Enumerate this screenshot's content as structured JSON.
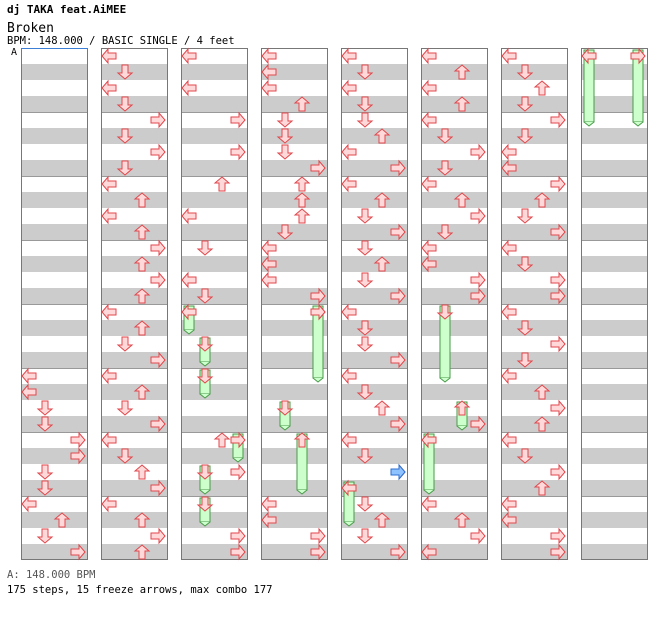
{
  "header": {
    "artist": "dj TAKA feat.AiMEE",
    "title": "Broken",
    "info": "BPM: 148.000 / BASIC SINGLE / 4 feet",
    "section_marker": "A"
  },
  "footer": {
    "bpm_note": "A: 148.000 BPM",
    "stats": "175 steps, 15 freeze arrows, max combo 177"
  },
  "colors": {
    "stripe_gray": "#cccccc",
    "column_border": "#777777",
    "arrow_fill": "#ffd9d9",
    "arrow_stroke": "#e0474c",
    "freeze_fill": "#ccffcc",
    "freeze_stroke": "#4a9a4a",
    "shock_fill": "#8ec3ff",
    "shock_stroke": "#2f6fd0"
  },
  "chart_data": {
    "type": "step_chart",
    "lanes": [
      "left",
      "down",
      "up",
      "right"
    ],
    "columns": [
      {
        "notes": [
          [
            [
              "L",
              0
            ],
            [
              "L",
              1
            ],
            [
              "D",
              2
            ],
            [
              "D",
              3
            ],
            [
              "R",
              4
            ],
            [
              "R",
              5
            ],
            [
              "D",
              6
            ],
            [
              "D",
              7
            ],
            [
              "L",
              8
            ],
            [
              "U",
              9
            ],
            [
              "D",
              10
            ],
            [
              "R",
              11
            ],
            [
              "L",
              12
            ],
            [
              "L",
              13
            ],
            [
              "R",
              14
            ],
            [
              "R",
              15
            ]
          ]
        ],
        "notes_start_beat": 20,
        "freezes": []
      },
      {
        "notes": [
          [
            [
              "L",
              0
            ],
            [
              "D",
              1
            ],
            [
              "L",
              2
            ],
            [
              "D",
              3
            ],
            [
              "R",
              4
            ],
            [
              "D",
              5
            ],
            [
              "R",
              6
            ],
            [
              "D",
              7
            ],
            [
              "L",
              8
            ],
            [
              "U",
              9
            ],
            [
              "L",
              10
            ],
            [
              "U",
              11
            ],
            [
              "R",
              12
            ],
            [
              "U",
              13
            ],
            [
              "R",
              14
            ],
            [
              "U",
              15
            ],
            [
              "L",
              16
            ],
            [
              "U",
              17
            ],
            [
              "D",
              18
            ],
            [
              "R",
              19
            ],
            [
              "L",
              20
            ],
            [
              "U",
              21
            ],
            [
              "D",
              22
            ],
            [
              "R",
              23
            ],
            [
              "L",
              24
            ],
            [
              "D",
              25
            ],
            [
              "U",
              26
            ],
            [
              "R",
              27
            ],
            [
              "L",
              28
            ],
            [
              "U",
              29
            ],
            [
              "R",
              30
            ],
            [
              "U",
              31
            ]
          ]
        ],
        "notes_start_beat": 0,
        "freezes": []
      },
      {
        "notes": [
          [
            [
              "L",
              0
            ],
            [
              "L",
              2
            ],
            [
              "R",
              4
            ],
            [
              "R",
              6
            ],
            [
              "U",
              8
            ],
            [
              "L",
              10
            ],
            [
              "D",
              12
            ],
            [
              "L",
              14
            ],
            [
              "D",
              15
            ],
            [
              "U",
              24
            ],
            [
              "R",
              26
            ],
            [
              "R",
              30
            ],
            [
              "R",
              31
            ]
          ]
        ],
        "notes_start_beat": 0,
        "freezes": [
          [
            "L",
            16,
            17
          ],
          [
            "D",
            18,
            19
          ],
          [
            "D",
            20,
            21
          ],
          [
            "R",
            24,
            25
          ],
          [
            "D",
            26,
            27
          ],
          [
            "D",
            28,
            29
          ]
        ]
      },
      {
        "notes": [
          [
            [
              "L",
              0
            ],
            [
              "L",
              1
            ],
            [
              "L",
              2
            ],
            [
              "U",
              3
            ],
            [
              "D",
              4
            ],
            [
              "D",
              5
            ],
            [
              "D",
              6
            ],
            [
              "R",
              7
            ],
            [
              "U",
              8
            ],
            [
              "U",
              9
            ],
            [
              "U",
              10
            ],
            [
              "D",
              11
            ],
            [
              "L",
              12
            ],
            [
              "L",
              13
            ],
            [
              "L",
              14
            ],
            [
              "R",
              15
            ],
            [
              "R",
              16
            ],
            [
              "L",
              28
            ],
            [
              "L",
              29
            ],
            [
              "R",
              30
            ],
            [
              "R",
              31
            ]
          ]
        ],
        "notes_start_beat": 0,
        "freezes": [
          [
            "R",
            16,
            20
          ],
          [
            "D",
            22,
            23
          ],
          [
            "U",
            24,
            27
          ]
        ]
      },
      {
        "notes": [
          [
            [
              "L",
              0
            ],
            [
              "D",
              1
            ],
            [
              "L",
              2
            ],
            [
              "D",
              3
            ],
            [
              "D",
              4
            ],
            [
              "U",
              5
            ],
            [
              "L",
              6
            ],
            [
              "R",
              7
            ],
            [
              "L",
              8
            ],
            [
              "U",
              9
            ],
            [
              "D",
              10
            ],
            [
              "R",
              11
            ],
            [
              "D",
              12
            ],
            [
              "U",
              13
            ],
            [
              "D",
              14
            ],
            [
              "R",
              15
            ],
            [
              "L",
              16
            ],
            [
              "D",
              17
            ],
            [
              "D",
              18
            ],
            [
              "R",
              19
            ],
            [
              "L",
              20
            ],
            [
              "D",
              21
            ],
            [
              "U",
              22
            ],
            [
              "R",
              23
            ],
            [
              "L",
              24
            ],
            [
              "D",
              25
            ],
            [
              "R",
              26
            ],
            [
              "D",
              28
            ],
            [
              "U",
              29
            ],
            [
              "D",
              30
            ],
            [
              "R",
              31
            ]
          ]
        ],
        "notes_start_beat": 0,
        "freezes": [
          [
            "L",
            27,
            29
          ]
        ],
        "shocks": [
          [
            "R",
            26
          ]
        ]
      },
      {
        "notes": [
          [
            [
              "L",
              0
            ],
            [
              "U",
              1
            ],
            [
              "L",
              2
            ],
            [
              "U",
              3
            ],
            [
              "L",
              4
            ],
            [
              "D",
              5
            ],
            [
              "R",
              6
            ],
            [
              "D",
              7
            ],
            [
              "L",
              8
            ],
            [
              "U",
              9
            ],
            [
              "R",
              10
            ],
            [
              "D",
              11
            ],
            [
              "L",
              12
            ],
            [
              "L",
              13
            ],
            [
              "R",
              14
            ],
            [
              "R",
              15
            ],
            [
              "R",
              23
            ],
            [
              "L",
              28
            ],
            [
              "U",
              29
            ],
            [
              "R",
              30
            ],
            [
              "L",
              31
            ]
          ]
        ],
        "notes_start_beat": 0,
        "freezes": [
          [
            "D",
            16,
            20
          ],
          [
            "U",
            22,
            23
          ],
          [
            "L",
            24,
            27
          ]
        ]
      },
      {
        "notes": [
          [
            [
              "L",
              0
            ],
            [
              "D",
              1
            ],
            [
              "U",
              2
            ],
            [
              "D",
              3
            ],
            [
              "R",
              4
            ],
            [
              "D",
              5
            ],
            [
              "L",
              6
            ],
            [
              "L",
              7
            ],
            [
              "R",
              8
            ],
            [
              "U",
              9
            ],
            [
              "D",
              10
            ],
            [
              "R",
              11
            ],
            [
              "L",
              12
            ],
            [
              "D",
              13
            ],
            [
              "R",
              14
            ],
            [
              "R",
              15
            ],
            [
              "L",
              16
            ],
            [
              "D",
              17
            ],
            [
              "R",
              18
            ],
            [
              "D",
              19
            ],
            [
              "L",
              20
            ],
            [
              "U",
              21
            ],
            [
              "R",
              22
            ],
            [
              "U",
              23
            ],
            [
              "L",
              24
            ],
            [
              "D",
              25
            ],
            [
              "R",
              26
            ],
            [
              "U",
              27
            ],
            [
              "L",
              28
            ],
            [
              "L",
              29
            ],
            [
              "R",
              30
            ],
            [
              "R",
              31
            ]
          ]
        ],
        "notes_start_beat": 0,
        "freezes": []
      },
      {
        "notes": [
          []
        ],
        "notes_start_beat": 0,
        "freezes": [
          [
            "L",
            0,
            4
          ],
          [
            "R",
            0,
            4
          ]
        ]
      }
    ]
  }
}
